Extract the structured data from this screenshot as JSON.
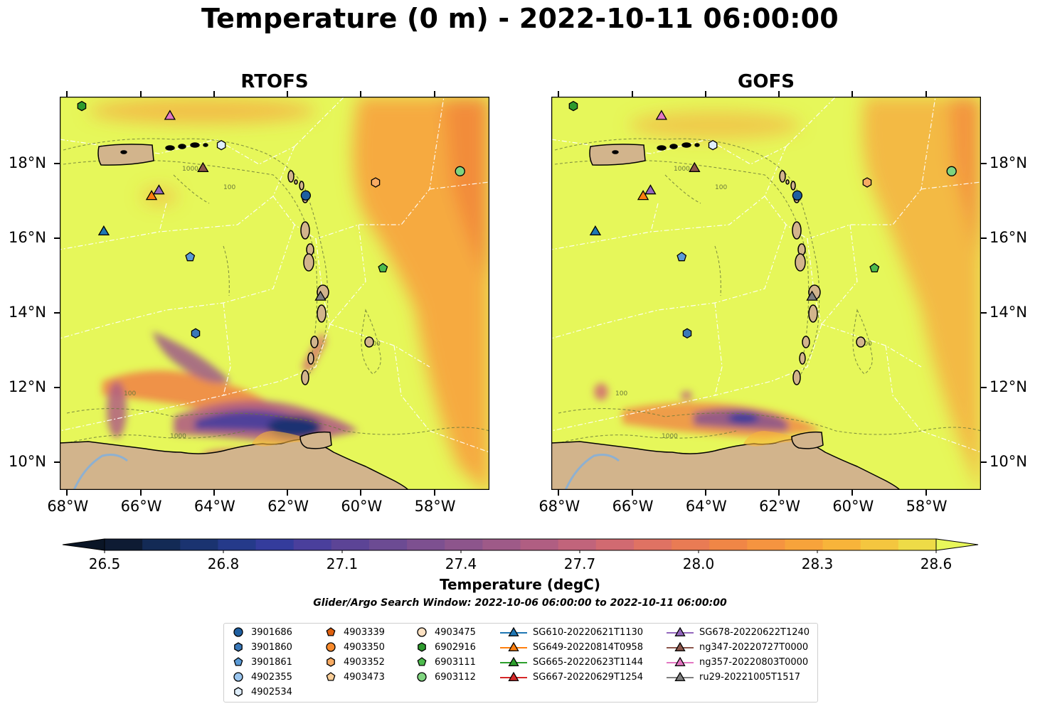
{
  "title": "Temperature (0 m) - 2022-10-11 06:00:00",
  "panels": [
    {
      "name": "RTOFS"
    },
    {
      "name": "GOFS"
    }
  ],
  "axes": {
    "x_ticks": [
      "68°W",
      "66°W",
      "64°W",
      "62°W",
      "60°W",
      "58°W"
    ],
    "y_ticks": [
      "18°N",
      "16°N",
      "14°N",
      "12°N",
      "10°N"
    ]
  },
  "contour_label": "1000",
  "contour_label_short": "100",
  "colorbar": {
    "label": "Temperature (degC)",
    "min": 26.5,
    "max": 28.6,
    "ticks": [
      "26.5",
      "26.8",
      "27.1",
      "27.4",
      "27.7",
      "28.0",
      "28.3",
      "28.6"
    ],
    "colors": [
      "#0e1b33",
      "#132a55",
      "#1a3370",
      "#253a8a",
      "#343c9c",
      "#4a3f9c",
      "#5c4496",
      "#6c4b93",
      "#7d5090",
      "#8d558c",
      "#9e5a88",
      "#b05e82",
      "#c1647b",
      "#d16a71",
      "#df7263",
      "#e97b54",
      "#f08646",
      "#f59440",
      "#f7a33b",
      "#f8b43a",
      "#f4c63f",
      "#eedb47"
    ],
    "over_color": "#e8f75a",
    "under_color": "#0a1526"
  },
  "search_window": "Glider/Argo Search Window: 2022-10-06 06:00:00 to 2022-10-11 06:00:00",
  "colors": {
    "ocean_base": "#e6f75a",
    "land": "#d2b48c",
    "warm": "#f7a53f",
    "warmer": "#f28a3b"
  },
  "legend": [
    {
      "label": "3901686",
      "marker": "circle",
      "color": "#1f5fa0"
    },
    {
      "label": "3901860",
      "marker": "hexagon",
      "color": "#3a78b8"
    },
    {
      "label": "3901861",
      "marker": "pentagon",
      "color": "#5a9ad6"
    },
    {
      "label": "4902355",
      "marker": "circle",
      "color": "#9ac5ee"
    },
    {
      "label": "4902534",
      "marker": "hexagon",
      "color": "#dfeefb"
    },
    {
      "label": "4903339",
      "marker": "pentagon",
      "color": "#e0600e"
    },
    {
      "label": "4903350",
      "marker": "circle",
      "color": "#f88a2c"
    },
    {
      "label": "4903352",
      "marker": "hexagon",
      "color": "#f8ab63"
    },
    {
      "label": "4903473",
      "marker": "pentagon",
      "color": "#fbcf99"
    },
    {
      "label": "4903475",
      "marker": "circle",
      "color": "#fde1c2"
    },
    {
      "label": "6902916",
      "marker": "hexagon",
      "color": "#2d9a2d"
    },
    {
      "label": "6903111",
      "marker": "pentagon",
      "color": "#4dbb4d"
    },
    {
      "label": "6903112",
      "marker": "circle",
      "color": "#7fd47f"
    },
    {
      "label": "SG610-20220621T1130",
      "marker": "triangle",
      "color": "#1f77b4"
    },
    {
      "label": "SG649-20220814T0958",
      "marker": "triangle",
      "color": "#ff7f0e"
    },
    {
      "label": "SG665-20220623T1144",
      "marker": "triangle",
      "color": "#2ca02c"
    },
    {
      "label": "SG667-20220629T1254",
      "marker": "triangle",
      "color": "#d62728"
    },
    {
      "label": "SG678-20220622T1240",
      "marker": "triangle",
      "color": "#9467bd"
    },
    {
      "label": "ng347-20220727T0000",
      "marker": "triangle",
      "color": "#8c564b"
    },
    {
      "label": "ng357-20220803T0000",
      "marker": "triangle",
      "color": "#e377c2"
    },
    {
      "label": "ru29-20221005T1517",
      "marker": "triangle",
      "color": "#7f7f7f"
    }
  ],
  "map_markers": [
    {
      "id": "6902916",
      "lon": -67.6,
      "lat": 19.55,
      "marker": "hexagon",
      "color": "#2d9a2d"
    },
    {
      "id": "ng357-20220803T0000",
      "lon": -65.2,
      "lat": 19.3,
      "marker": "triangle",
      "color": "#e377c2"
    },
    {
      "id": "4902534",
      "lon": -63.8,
      "lat": 18.5,
      "marker": "hexagon",
      "color": "#dfeefb"
    },
    {
      "id": "ng347-20220727T0000",
      "lon": -64.3,
      "lat": 17.9,
      "marker": "triangle",
      "color": "#8c564b"
    },
    {
      "id": "SG678-20220622T1240",
      "lon": -65.5,
      "lat": 17.3,
      "marker": "triangle",
      "color": "#9467bd"
    },
    {
      "id": "SG649-20220814T0958",
      "lon": -65.7,
      "lat": 17.15,
      "marker": "triangle",
      "color": "#ff7f0e"
    },
    {
      "id": "SG610-20220621T1130",
      "lon": -67.0,
      "lat": 16.2,
      "marker": "triangle",
      "color": "#1f77b4"
    },
    {
      "id": "3901861",
      "lon": -64.65,
      "lat": 15.5,
      "marker": "pentagon",
      "color": "#5a9ad6"
    },
    {
      "id": "3901860",
      "lon": -64.5,
      "lat": 13.45,
      "marker": "hexagon",
      "color": "#3a78b8"
    },
    {
      "id": "3901686",
      "lon": -61.5,
      "lat": 17.15,
      "marker": "circle",
      "color": "#1f5fa0"
    },
    {
      "id": "4903352",
      "lon": -59.6,
      "lat": 17.5,
      "marker": "hexagon",
      "color": "#f8ab63"
    },
    {
      "id": "6903112",
      "lon": -57.3,
      "lat": 17.8,
      "marker": "circle",
      "color": "#7fd47f"
    },
    {
      "id": "6903111",
      "lon": -59.4,
      "lat": 15.2,
      "marker": "pentagon",
      "color": "#4dbb4d"
    },
    {
      "id": "ru29-20221005T1517",
      "lon": -61.1,
      "lat": 14.45,
      "marker": "triangle",
      "color": "#7f7f7f"
    }
  ]
}
